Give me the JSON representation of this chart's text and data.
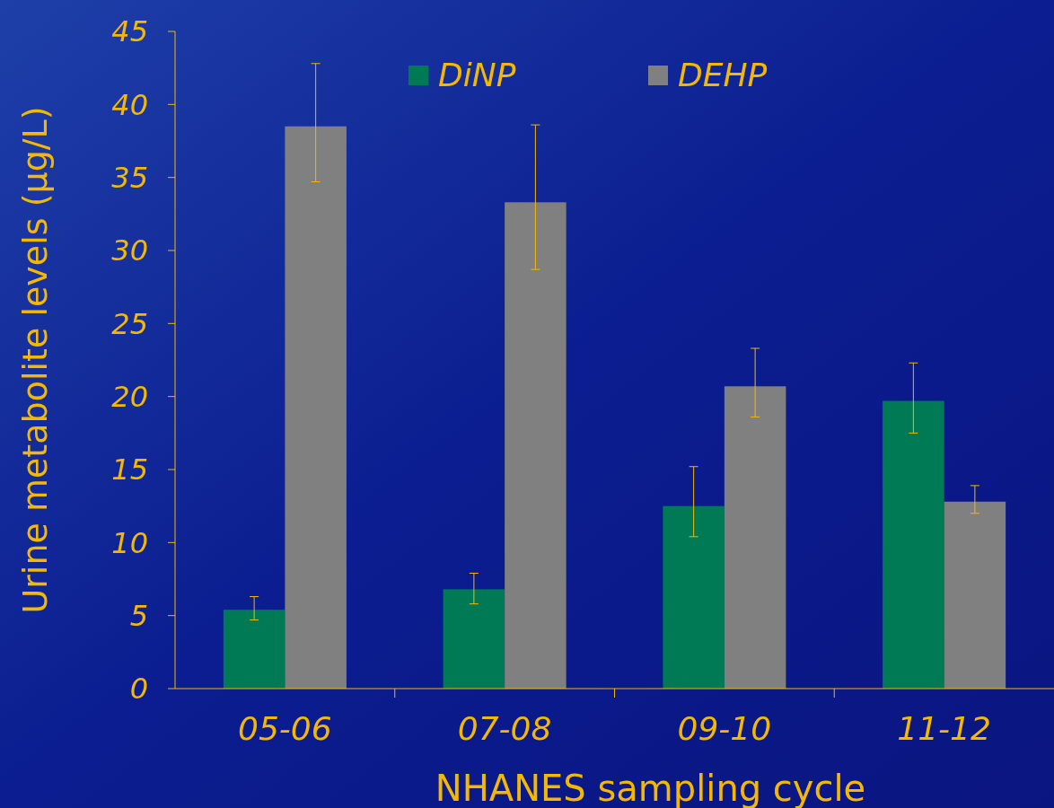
{
  "chart_data": {
    "type": "bar",
    "xlabel": "NHANES sampling cycle",
    "ylabel": "Urine metabolite levels (µg/L)",
    "categories": [
      "05-06",
      "07-08",
      "09-10",
      "11-12"
    ],
    "series": [
      {
        "name": "DiNP",
        "color": "#007a55",
        "values": [
          5.4,
          6.8,
          12.5,
          19.7
        ],
        "errors": [
          [
            4.7,
            6.3
          ],
          [
            5.8,
            7.9
          ],
          [
            10.4,
            15.2
          ],
          [
            17.5,
            22.3
          ]
        ]
      },
      {
        "name": "DEHP",
        "color": "#808080",
        "values": [
          38.5,
          33.3,
          20.7,
          12.8
        ],
        "errors": [
          [
            34.7,
            42.8
          ],
          [
            28.7,
            38.6
          ],
          [
            18.6,
            23.3
          ],
          [
            12.0,
            13.9
          ]
        ]
      }
    ],
    "ylim": [
      0,
      45
    ],
    "yticks": [
      0,
      5,
      10,
      15,
      20,
      25,
      30,
      35,
      40,
      45
    ],
    "legend": "top",
    "grid": false
  }
}
